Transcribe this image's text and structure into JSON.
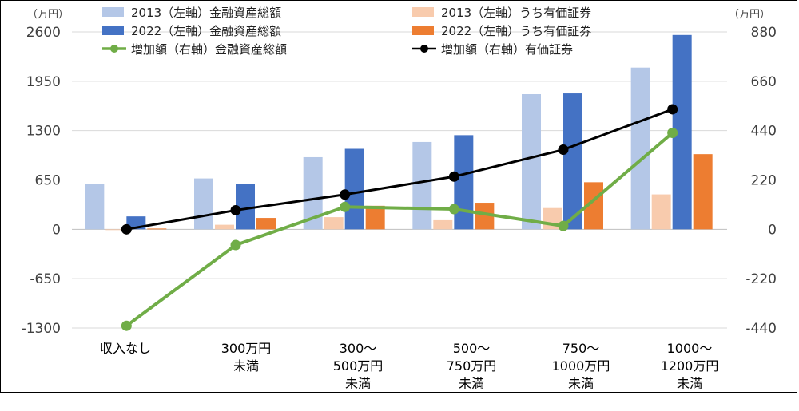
{
  "chart_data": {
    "type": "bar",
    "categories": [
      [
        "収入なし"
      ],
      [
        "300万円",
        "未満"
      ],
      [
        "300～",
        "500万円",
        "未満"
      ],
      [
        "500～",
        "750万円",
        "未満"
      ],
      [
        "750～",
        "1000万円",
        "未満"
      ],
      [
        "1000～",
        "1200万円",
        "未満"
      ]
    ],
    "y_left": {
      "unit": "（万円）",
      "ylim": [
        -1300,
        2600
      ],
      "ticks": [
        "2600",
        "1950",
        "1300",
        "650",
        "0",
        "-650",
        "-1300"
      ]
    },
    "y_right": {
      "unit": "（万円）",
      "ylim": [
        -440,
        880
      ],
      "ticks": [
        "880",
        "660",
        "440",
        "220",
        "0",
        "-220",
        "-440"
      ]
    },
    "series": [
      {
        "name": "2013（左軸）金融資産総額",
        "kind": "bar",
        "axis": "left",
        "color": "#b4c7e7",
        "values": [
          600,
          670,
          950,
          1150,
          1780,
          2130
        ]
      },
      {
        "name": "2013（左軸）うち有価証券",
        "kind": "bar",
        "axis": "left",
        "color": "#f8cbad",
        "values": [
          0,
          60,
          160,
          120,
          280,
          460
        ]
      },
      {
        "name": "2022（左軸）金融資産総額",
        "kind": "bar",
        "axis": "left",
        "color": "#4472c4",
        "values": [
          170,
          600,
          1060,
          1240,
          1790,
          2560
        ]
      },
      {
        "name": "2022（左軸）うち有価証券",
        "kind": "bar",
        "axis": "left",
        "color": "#ed7d31",
        "values": [
          10,
          150,
          310,
          350,
          620,
          990
        ]
      },
      {
        "name": "増加額（右軸）金融資産総額",
        "kind": "line",
        "axis": "right",
        "color": "#70ad47",
        "values": [
          -430,
          -70,
          100,
          90,
          15,
          430
        ]
      },
      {
        "name": "増加額（右軸）有価証券",
        "kind": "line",
        "axis": "right",
        "color": "#000000",
        "values": [
          0,
          85,
          155,
          235,
          355,
          535
        ]
      }
    ],
    "grid": true,
    "legend": "top"
  }
}
